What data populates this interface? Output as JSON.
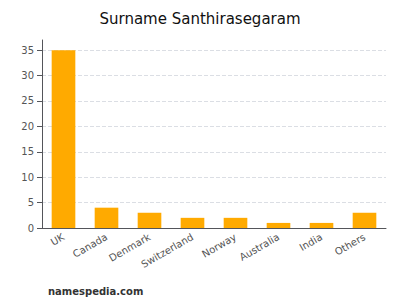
{
  "chart_data": {
    "type": "bar",
    "title": "Surname Santhirasegaram",
    "categories": [
      "UK",
      "Canada",
      "Denmark",
      "Switzerland",
      "Norway",
      "Australia",
      "India",
      "Others"
    ],
    "values": [
      35,
      4,
      3,
      2,
      2,
      1,
      1,
      3
    ],
    "color": "#FFAA00",
    "ylim": [
      0,
      37
    ],
    "yticks": [
      0,
      5,
      10,
      15,
      20,
      25,
      30,
      35
    ],
    "grid": true,
    "annotations": [
      "namespedia.com"
    ]
  }
}
